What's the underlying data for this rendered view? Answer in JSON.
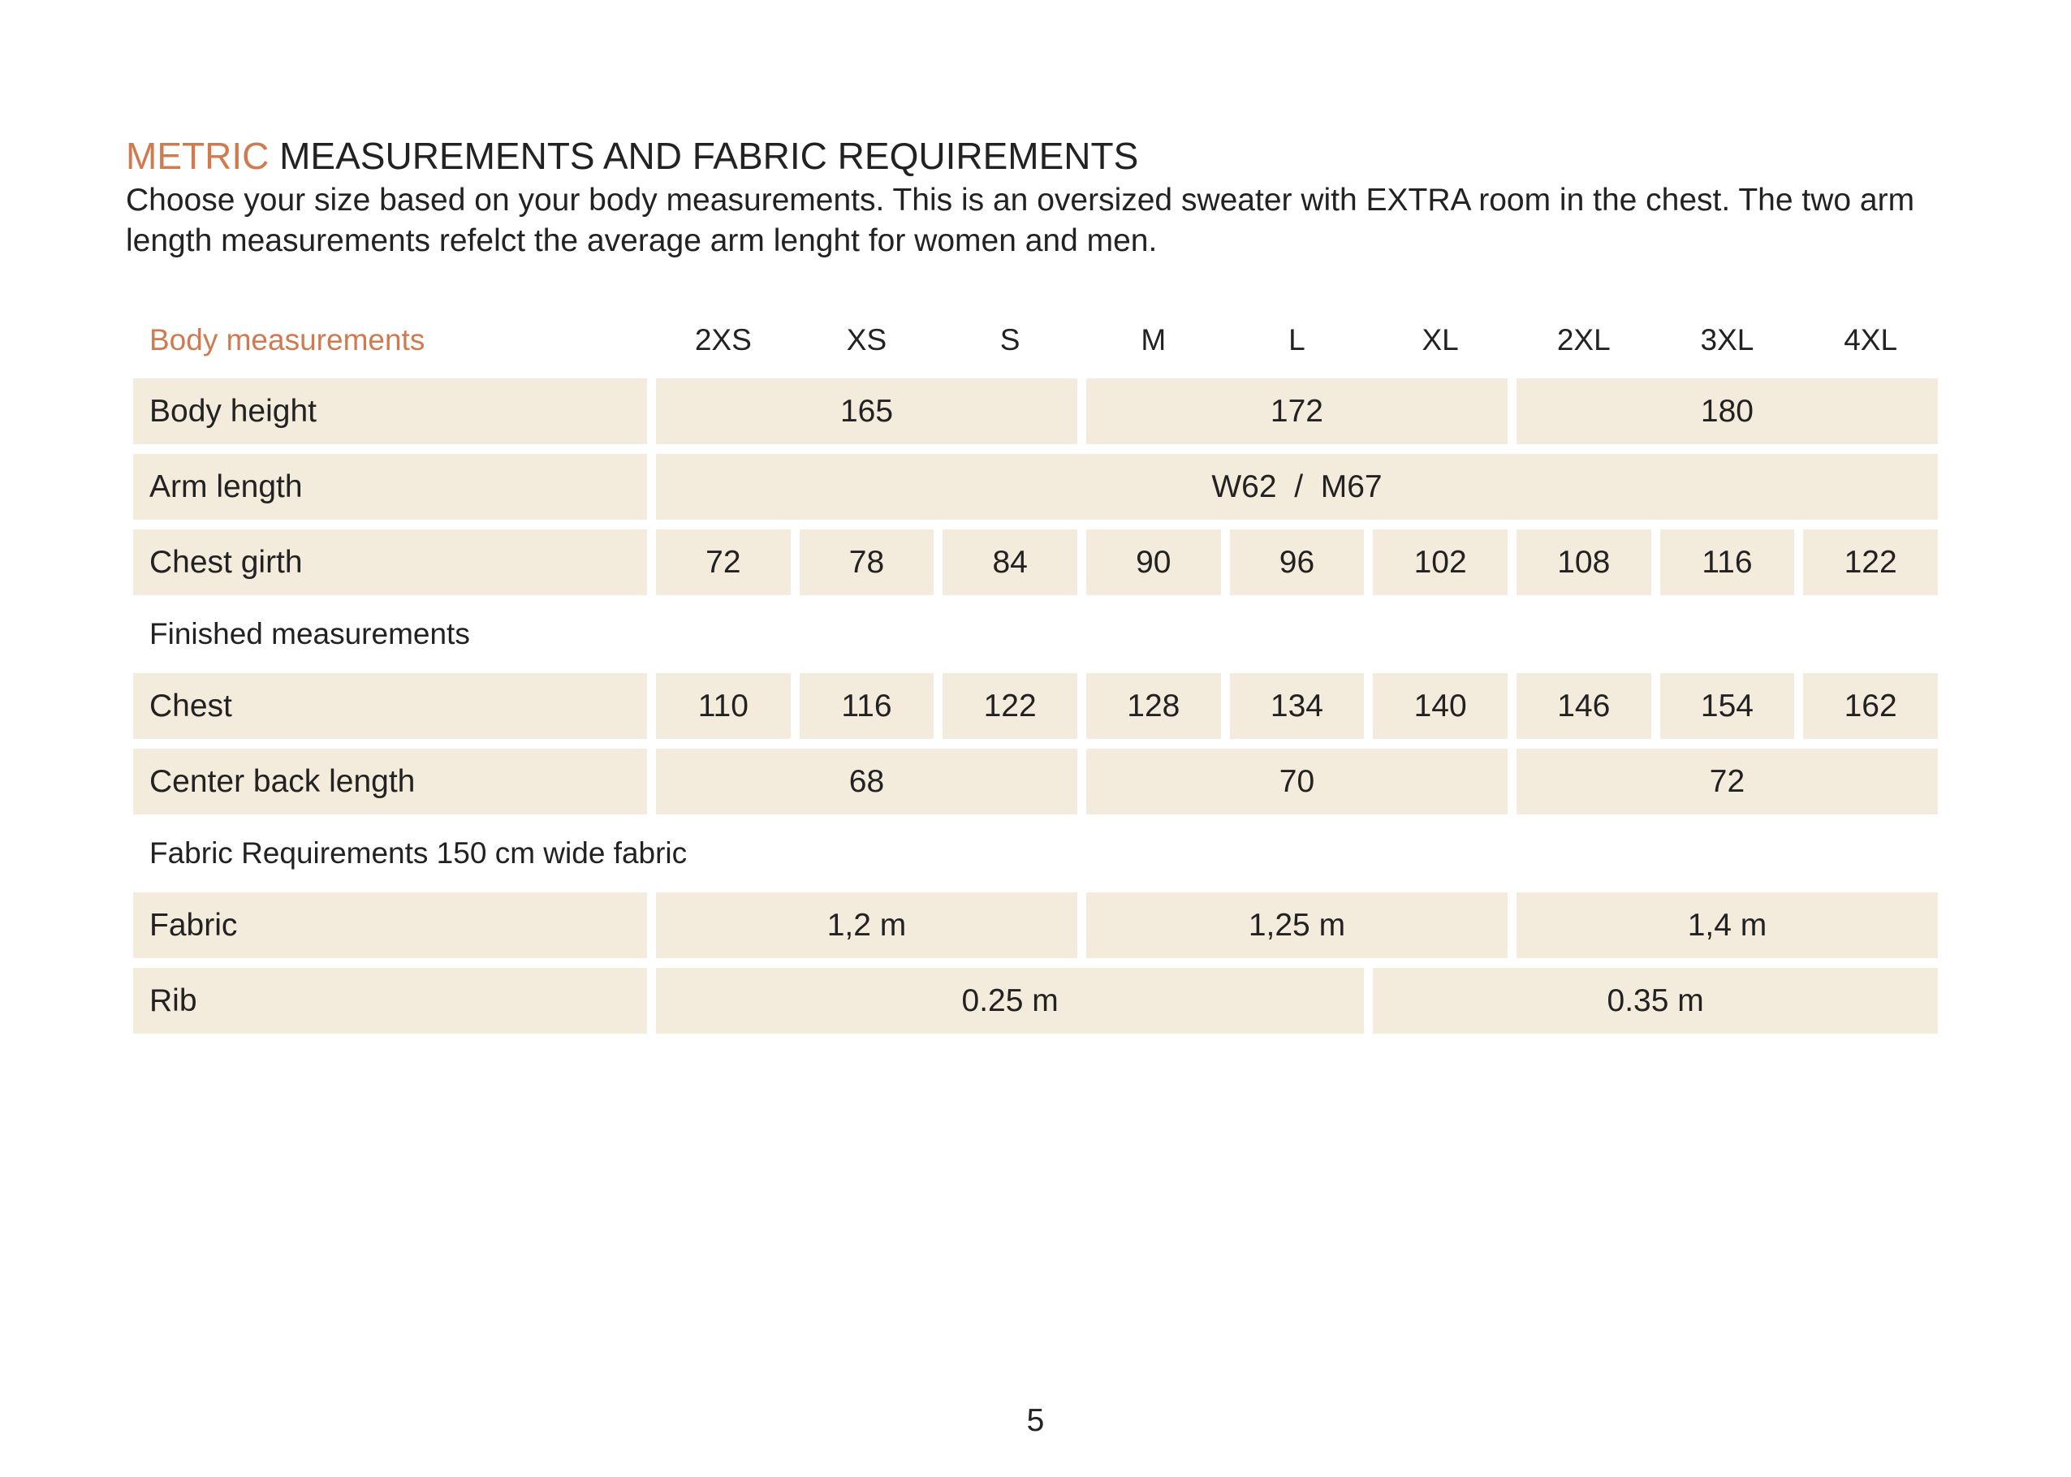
{
  "header": {
    "title_accent": "METRIC",
    "title": "MEASUREMENTS AND FABRIC REQUIREMENTS",
    "description": "Choose your size based on your body measurements. This is an oversized sweater with EXTRA room in the chest. The two arm length measurements refelct the average arm lenght for women and men."
  },
  "table": {
    "header": {
      "label": "Body measurements",
      "sizes": [
        "2XS",
        "XS",
        "S",
        "M",
        "L",
        "XL",
        "2XL",
        "3XL",
        "4XL"
      ]
    },
    "body_rows": [
      {
        "label": "Body height",
        "cells": [
          165,
          172,
          180
        ]
      },
      {
        "label": "Arm length",
        "cells": [
          "W62  /  M67"
        ]
      },
      {
        "label": "Chest girth",
        "cells": [
          72,
          78,
          84,
          90,
          96,
          102,
          108,
          116,
          122
        ]
      }
    ],
    "finished_heading": "Finished measurements",
    "finished_rows": [
      {
        "label": "Chest",
        "cells": [
          110,
          116,
          122,
          128,
          134,
          140,
          146,
          154,
          162
        ]
      },
      {
        "label": "Center back length",
        "cells": [
          68,
          70,
          72
        ]
      }
    ],
    "fabric_heading": "Fabric Requirements 150 cm wide fabric",
    "fabric_rows": [
      {
        "label": "Fabric",
        "cells": [
          "1,2 m",
          "1,25 m",
          "1,4 m"
        ]
      },
      {
        "label": "Rib",
        "cells": [
          "0.25 m",
          "0.35 m"
        ]
      }
    ]
  },
  "page_number": "5"
}
